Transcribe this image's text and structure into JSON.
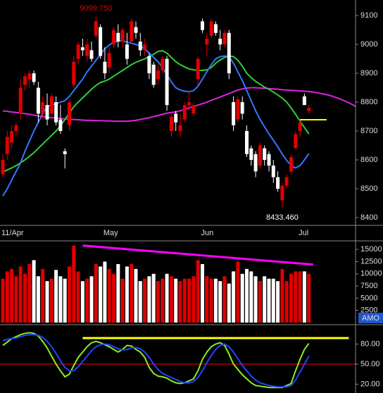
{
  "chart_data": [
    {
      "type": "candlestick",
      "categories": [
        "11/Apr",
        null,
        null,
        null,
        null,
        null,
        null,
        null,
        null,
        null,
        null,
        null,
        null,
        null,
        null,
        null,
        null,
        null,
        null,
        null,
        null,
        null,
        null,
        "May",
        null,
        null,
        null,
        null,
        null,
        null,
        null,
        null,
        null,
        null,
        null,
        null,
        null,
        null,
        null,
        null,
        null,
        null,
        null,
        null,
        null,
        "Jun",
        null,
        null,
        null,
        null,
        null,
        null,
        null,
        null,
        null,
        null,
        null,
        null,
        null,
        null,
        null,
        null,
        null,
        null,
        null,
        null,
        null,
        "Jul",
        null,
        null,
        null,
        null,
        null,
        null,
        null,
        null,
        null,
        null,
        null,
        null,
        null
      ],
      "open": [
        8550,
        8620,
        8660,
        8700,
        8760,
        8860,
        8880,
        8900,
        8850,
        8760,
        8790,
        8760,
        8800,
        8740,
        8630,
        8720,
        8860,
        8950,
        8990,
        8960,
        8980,
        9030,
        9060,
        8940,
        8920,
        9000,
        9040,
        9010,
        9000,
        9010,
        9060,
        9010,
        8980,
        8960,
        8930,
        8880,
        8910,
        8950,
        8700,
        8760,
        8700,
        8740,
        8790,
        8760,
        8880,
        9080,
        9000,
        9030,
        9070,
        9020,
        9000,
        9040,
        8800,
        8740,
        8800,
        8700,
        8640,
        8620,
        8580,
        8640,
        8620,
        8580,
        8540,
        8460,
        8510,
        8560,
        8640,
        8700,
        8820,
        8770,
        null,
        null,
        null,
        null,
        null,
        null,
        null,
        null,
        null,
        null,
        null
      ],
      "high": [
        8620,
        8700,
        8720,
        8730,
        8880,
        8900,
        8910,
        8910,
        8870,
        8820,
        8830,
        8830,
        8820,
        8790,
        8640,
        8810,
        8960,
        9010,
        9020,
        9020,
        9010,
        9099.75,
        9070,
        8990,
        8990,
        9060,
        9070,
        9060,
        9040,
        9090,
        9080,
        9040,
        9020,
        8970,
        8940,
        8930,
        8960,
        8960,
        8760,
        8770,
        8760,
        8800,
        8840,
        8800,
        8960,
        9090,
        9040,
        9090,
        9080,
        9050,
        9050,
        9050,
        8820,
        8820,
        8820,
        8720,
        8650,
        8630,
        8660,
        8650,
        8630,
        8600,
        8560,
        8520,
        8550,
        8620,
        8700,
        8740,
        8830,
        8790,
        null,
        null,
        null,
        null,
        null,
        null,
        null,
        null,
        null,
        null,
        null
      ],
      "low": [
        8540,
        8600,
        8640,
        8680,
        8740,
        8840,
        8850,
        8860,
        8730,
        8740,
        8720,
        8740,
        8720,
        8690,
        8570,
        8700,
        8850,
        8930,
        8960,
        8940,
        8940,
        9020,
        8950,
        8880,
        8900,
        8990,
        8990,
        8990,
        8930,
        9000,
        9020,
        8960,
        8960,
        8880,
        8850,
        8860,
        8900,
        8770,
        8680,
        8700,
        8680,
        8730,
        8770,
        8750,
        8860,
        9040,
        8960,
        9020,
        9030,
        8980,
        8990,
        8880,
        8700,
        8730,
        8740,
        8610,
        8580,
        8540,
        8570,
        8580,
        8560,
        8520,
        8490,
        8433.46,
        8500,
        8550,
        8640,
        8680,
        8790,
        8760,
        null,
        null,
        null,
        null,
        null,
        null,
        null,
        null,
        null,
        null,
        null
      ],
      "close": [
        8600,
        8680,
        8700,
        8720,
        8850,
        8890,
        8900,
        8870,
        8760,
        8800,
        8740,
        8820,
        8730,
        8700,
        8620,
        8800,
        8940,
        9000,
        8980,
        9000,
        8950,
        9080,
        8960,
        8900,
        8970,
        9050,
        9010,
        9050,
        8950,
        9080,
        9040,
        8980,
        9000,
        8900,
        8860,
        8910,
        8950,
        8790,
        8750,
        8730,
        8720,
        8790,
        8800,
        8790,
        8950,
        9050,
        9020,
        9080,
        9040,
        9000,
        9040,
        8900,
        8720,
        8810,
        8760,
        8620,
        8600,
        8560,
        8650,
        8600,
        8580,
        8540,
        8500,
        8510,
        8540,
        8610,
        8690,
        8730,
        8790,
        8780,
        null,
        null,
        null,
        null,
        null,
        null,
        null,
        null,
        null,
        null,
        null
      ],
      "up_color": "#e00000",
      "down_color": "#ffffff",
      "series": [
        {
          "color": "#e020e0",
          "values": [
            8770,
            8768,
            8766,
            8764,
            8762,
            8760,
            8758,
            8755,
            8752,
            8750,
            8748,
            8746,
            8745,
            8744,
            8742,
            8741,
            8740,
            8739,
            8738,
            8737,
            8737,
            8736,
            8736,
            8735,
            8735,
            8734,
            8734,
            8734,
            8734,
            8735,
            8737,
            8740,
            8743,
            8746,
            8750,
            8754,
            8758,
            8762,
            8764,
            8766,
            8770,
            8775,
            8780,
            8785,
            8790,
            8795,
            8800,
            8806,
            8812,
            8818,
            8824,
            8830,
            8836,
            8842,
            8846,
            8849,
            8850,
            8850,
            8849,
            8848,
            8847,
            8846,
            8845,
            8843,
            8842,
            8841,
            8840,
            8839,
            8838,
            8837,
            8835,
            8832,
            8829,
            8826,
            8822,
            8817,
            8811,
            8805,
            8798,
            8790,
            8781
          ]
        },
        {
          "color": "#33cc33",
          "values": [
            8558,
            8565,
            8572,
            8580,
            8590,
            8600,
            8612,
            8625,
            8640,
            8655,
            8670,
            8685,
            8700,
            8718,
            8740,
            8762,
            8784,
            8800,
            8815,
            8830,
            8845,
            8858,
            8868,
            8873,
            8880,
            8890,
            8900,
            8910,
            8920,
            8930,
            8938,
            8944,
            8950,
            8958,
            8966,
            8976,
            8978,
            8970,
            8955,
            8940,
            8930,
            8922,
            8915,
            8912,
            8910,
            8910,
            8912,
            8920,
            8935,
            8946,
            8955,
            8960,
            8958,
            8945,
            8925,
            8900,
            8885,
            8872,
            8862,
            8852,
            8845,
            8835,
            8825,
            8814,
            8800,
            8780,
            8758,
            8735,
            8712,
            8690,
            null,
            null,
            null,
            null,
            null,
            null,
            null,
            null,
            null,
            null,
            null
          ]
        },
        {
          "color": "#3377ff",
          "values": [
            8475,
            8500,
            8530,
            8560,
            8590,
            8630,
            8665,
            8700,
            8730,
            8760,
            8785,
            8790,
            8795,
            8800,
            8805,
            8820,
            8840,
            8860,
            8880,
            8905,
            8925,
            8945,
            8965,
            8985,
            8998,
            9008,
            9012,
            9012,
            9008,
            9004,
            9000,
            8995,
            8985,
            8970,
            8955,
            8940,
            8920,
            8895,
            8870,
            8850,
            8842,
            8838,
            8836,
            8840,
            8855,
            8880,
            8905,
            8930,
            8950,
            8958,
            8960,
            8958,
            8935,
            8905,
            8875,
            8840,
            8805,
            8770,
            8740,
            8715,
            8690,
            8668,
            8645,
            8620,
            8598,
            8580,
            8572,
            8580,
            8600,
            8622,
            null,
            null,
            null,
            null,
            null,
            null,
            null,
            null,
            null,
            null,
            null
          ]
        }
      ],
      "ylim": [
        8373,
        9154
      ],
      "yticks": [
        8400,
        8500,
        8600,
        8700,
        8800,
        8900,
        9000,
        9100
      ],
      "annotations": [
        {
          "label": "9099.750",
          "value": 9099.75,
          "color": "#e00000"
        },
        {
          "label": "8433.460",
          "value": 8433.46,
          "color": "#ffffff"
        }
      ],
      "levels": [
        {
          "value": 8739,
          "color": "#ffff00",
          "from": 67,
          "to": 73
        }
      ]
    },
    {
      "type": "bar",
      "values": [
        9000,
        10500,
        11000,
        9500,
        11500,
        10000,
        12000,
        12800,
        9500,
        11000,
        8500,
        9000,
        10800,
        9500,
        9000,
        11500,
        15800,
        10500,
        8500,
        9000,
        9500,
        12000,
        11500,
        12500,
        11000,
        10000,
        12000,
        9000,
        11500,
        12000,
        11000,
        8500,
        9000,
        9500,
        10000,
        8500,
        9000,
        10000,
        9500,
        9000,
        8500,
        9000,
        9000,
        9500,
        12800,
        12000,
        9500,
        9000,
        9000,
        8500,
        9500,
        8000,
        10500,
        12500,
        10000,
        11000,
        10500,
        9500,
        8500,
        9500,
        9000,
        9000,
        8500,
        11000,
        8500,
        10000,
        10500,
        10500,
        10500,
        10000
      ],
      "ylim": [
        0,
        16760
      ],
      "yticks": [
        2500,
        5000,
        7500,
        10000,
        12500,
        15000
      ],
      "tag": "AMO",
      "trendline": {
        "color": "#ff00ff",
        "from": [
          18,
          15800
        ],
        "to": [
          70,
          11900
        ]
      }
    },
    {
      "type": "line",
      "series": [
        {
          "color": "#88ee22",
          "values": [
            78,
            83,
            88,
            91,
            94,
            96,
            97,
            96,
            92,
            84,
            74,
            62,
            50,
            40,
            31,
            35,
            48,
            60,
            68,
            76,
            82,
            84,
            82,
            79,
            76,
            72,
            68,
            72,
            78,
            77,
            72,
            68,
            60,
            45,
            36,
            32,
            31,
            29,
            25,
            22,
            21,
            22,
            25,
            28,
            40,
            57,
            68,
            76,
            80,
            82,
            78,
            65,
            50,
            42,
            34,
            28,
            22,
            18,
            17,
            16,
            15,
            15,
            15,
            15,
            18,
            21,
            40,
            57,
            72,
            81
          ]
        },
        {
          "color": "#2244ff",
          "values": [
            85,
            87,
            88,
            89,
            91,
            93,
            94,
            94,
            93,
            90,
            84,
            76,
            66,
            55,
            45,
            40,
            40,
            46,
            54,
            62,
            70,
            76,
            79,
            80,
            79,
            76,
            73,
            71,
            72,
            74,
            75,
            73,
            68,
            60,
            50,
            42,
            36,
            33,
            30,
            27,
            24,
            22,
            22,
            24,
            30,
            40,
            52,
            63,
            72,
            78,
            80,
            76,
            68,
            58,
            48,
            40,
            32,
            26,
            22,
            20,
            18,
            17,
            16,
            16,
            16,
            18,
            26,
            38,
            50,
            62
          ]
        }
      ],
      "ylim": [
        6.8,
        107.9
      ],
      "yticks": [
        {
          "value": 20,
          "label": "20.00"
        },
        {
          "value": 50,
          "label": "50.00"
        },
        {
          "value": 80,
          "label": "80.00"
        }
      ],
      "hlines": [
        {
          "value": 50,
          "color": "#ff0000",
          "from": -1,
          "to": 80
        },
        {
          "value": 89,
          "color": "#ffff00",
          "from": 18,
          "to": 78
        }
      ]
    }
  ]
}
